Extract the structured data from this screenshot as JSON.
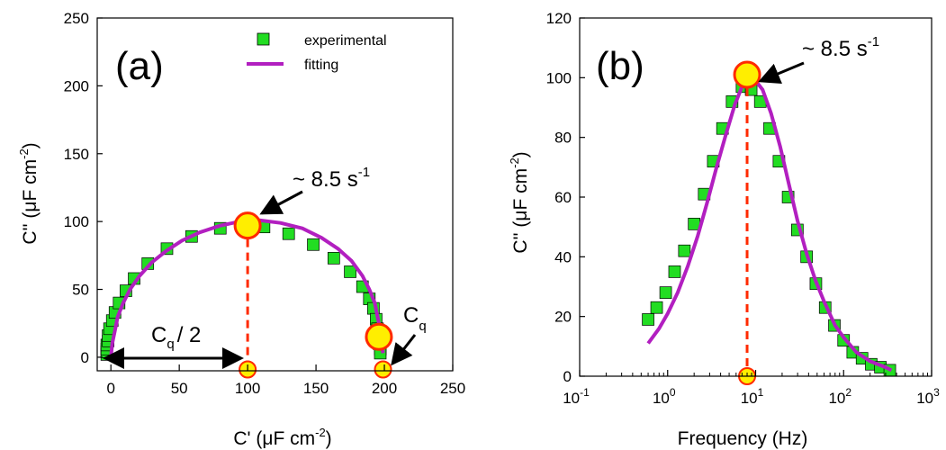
{
  "colors": {
    "marker_fill": "#22dd22",
    "marker_edge": "#000000",
    "fit_line": "#b21fc0",
    "highlight_fill": "#ffee00",
    "highlight_edge": "#ff2a00",
    "dashed": "#ff2a00"
  },
  "chart_data": [
    {
      "type": "scatter",
      "panel_label": "(a)",
      "xlabel": "C' (μF cm⁻²)",
      "ylabel": "C'' (μF cm⁻²)",
      "xlim": [
        -10,
        250
      ],
      "ylim": [
        -10,
        250
      ],
      "xticks": [
        0,
        50,
        100,
        150,
        200,
        250
      ],
      "yticks": [
        0,
        50,
        100,
        150,
        200,
        250
      ],
      "legend": {
        "placement": "top-right",
        "experimental": "experimental",
        "fitting": "fitting"
      },
      "series": [
        {
          "name": "experimental",
          "points": [
            [
              -3,
              2
            ],
            [
              -3,
              4
            ],
            [
              -3,
              6
            ],
            [
              -3,
              9
            ],
            [
              -2,
              12
            ],
            [
              -2,
              16
            ],
            [
              -1,
              21
            ],
            [
              1,
              27
            ],
            [
              3,
              33
            ],
            [
              6,
              40
            ],
            [
              11,
              49
            ],
            [
              17,
              58
            ],
            [
              27,
              69
            ],
            [
              41,
              80
            ],
            [
              59,
              89
            ],
            [
              80,
              95
            ],
            [
              97,
              97
            ],
            [
              112,
              96
            ],
            [
              130,
              91
            ],
            [
              148,
              83
            ],
            [
              163,
              73
            ],
            [
              175,
              63
            ],
            [
              184,
              52
            ],
            [
              189,
              43
            ],
            [
              192,
              36
            ],
            [
              194,
              28
            ],
            [
              195,
              21
            ],
            [
              196,
              15
            ],
            [
              196,
              10
            ],
            [
              197,
              6
            ],
            [
              197,
              3
            ]
          ]
        },
        {
          "name": "fitting",
          "points": [
            [
              0,
              0
            ],
            [
              1,
              10
            ],
            [
              3,
              20
            ],
            [
              5,
              30
            ],
            [
              9,
              40
            ],
            [
              14,
              50
            ],
            [
              21,
              60
            ],
            [
              30,
              70
            ],
            [
              40,
              78
            ],
            [
              52,
              86
            ],
            [
              65,
              92
            ],
            [
              80,
              97
            ],
            [
              94,
              100
            ],
            [
              100,
              101
            ],
            [
              108,
              101
            ],
            [
              124,
              99
            ],
            [
              140,
              95
            ],
            [
              154,
              88
            ],
            [
              166,
              80
            ],
            [
              176,
              71
            ],
            [
              184,
              60
            ],
            [
              189,
              50
            ],
            [
              193,
              40
            ],
            [
              195,
              30
            ],
            [
              197,
              20
            ],
            [
              198,
              10
            ],
            [
              199,
              3
            ]
          ]
        }
      ],
      "highlight_points": [
        [
          100,
          97
        ],
        [
          196,
          15
        ]
      ],
      "axis_points": [
        [
          100,
          -9
        ],
        [
          199,
          -9
        ]
      ],
      "dashed_x": 100,
      "annotations": {
        "peak_label": "~ 8.5 s",
        "peak_exponent": "-1",
        "half_label": "C",
        "half_sub": "q",
        "half_tail": "/ 2",
        "cq_label": "C",
        "cq_sub": "q"
      }
    },
    {
      "type": "scatter",
      "panel_label": "(b)",
      "xlabel": "Frequency (Hz)",
      "ylabel": "C'' (μF cm⁻²)",
      "xscale": "log",
      "xlim": [
        0.1,
        1000
      ],
      "ylim": [
        0,
        120
      ],
      "xticks": [
        0.1,
        1,
        10,
        100,
        1000
      ],
      "xtick_base": "10",
      "xtick_exponents": [
        "-1",
        "0",
        "1",
        "2",
        "3"
      ],
      "yticks": [
        0,
        20,
        40,
        60,
        80,
        100,
        120
      ],
      "series": [
        {
          "name": "experimental",
          "points": [
            [
              0.6,
              19
            ],
            [
              0.75,
              23
            ],
            [
              0.95,
              28
            ],
            [
              1.2,
              35
            ],
            [
              1.55,
              42
            ],
            [
              2,
              51
            ],
            [
              2.6,
              61
            ],
            [
              3.3,
              72
            ],
            [
              4.2,
              83
            ],
            [
              5.4,
              92
            ],
            [
              7,
              97
            ],
            [
              8.9,
              96
            ],
            [
              11.3,
              92
            ],
            [
              14.4,
              83
            ],
            [
              18.4,
              72
            ],
            [
              23.4,
              60
            ],
            [
              29.8,
              49
            ],
            [
              38,
              40
            ],
            [
              48.4,
              31
            ],
            [
              61.7,
              23
            ],
            [
              78.6,
              17
            ],
            [
              100,
              12
            ],
            [
              127,
              8
            ],
            [
              162,
              6
            ],
            [
              206,
              4
            ],
            [
              262,
              3
            ],
            [
              335,
              2
            ]
          ]
        },
        {
          "name": "fitting",
          "points": [
            [
              0.6,
              11
            ],
            [
              0.8,
              16
            ],
            [
              1,
              21
            ],
            [
              1.3,
              28
            ],
            [
              1.7,
              37
            ],
            [
              2.2,
              47
            ],
            [
              2.8,
              58
            ],
            [
              3.6,
              70
            ],
            [
              4.6,
              81
            ],
            [
              5.8,
              91
            ],
            [
              7,
              97
            ],
            [
              8.5,
              100
            ],
            [
              10,
              99
            ],
            [
              12,
              96
            ],
            [
              15,
              88
            ],
            [
              19,
              77
            ],
            [
              24,
              64
            ],
            [
              30,
              52
            ],
            [
              38,
              41
            ],
            [
              48,
              32
            ],
            [
              60,
              25
            ],
            [
              80,
              17
            ],
            [
              100,
              13
            ],
            [
              140,
              8
            ],
            [
              200,
              5
            ],
            [
              300,
              3
            ],
            [
              350,
              2
            ]
          ]
        }
      ],
      "highlight_points": [
        [
          8,
          101
        ]
      ],
      "axis_points": [
        [
          8,
          0
        ]
      ],
      "dashed_x": 8,
      "annotations": {
        "peak_label": "~ 8.5 s",
        "peak_exponent": "-1"
      }
    }
  ]
}
